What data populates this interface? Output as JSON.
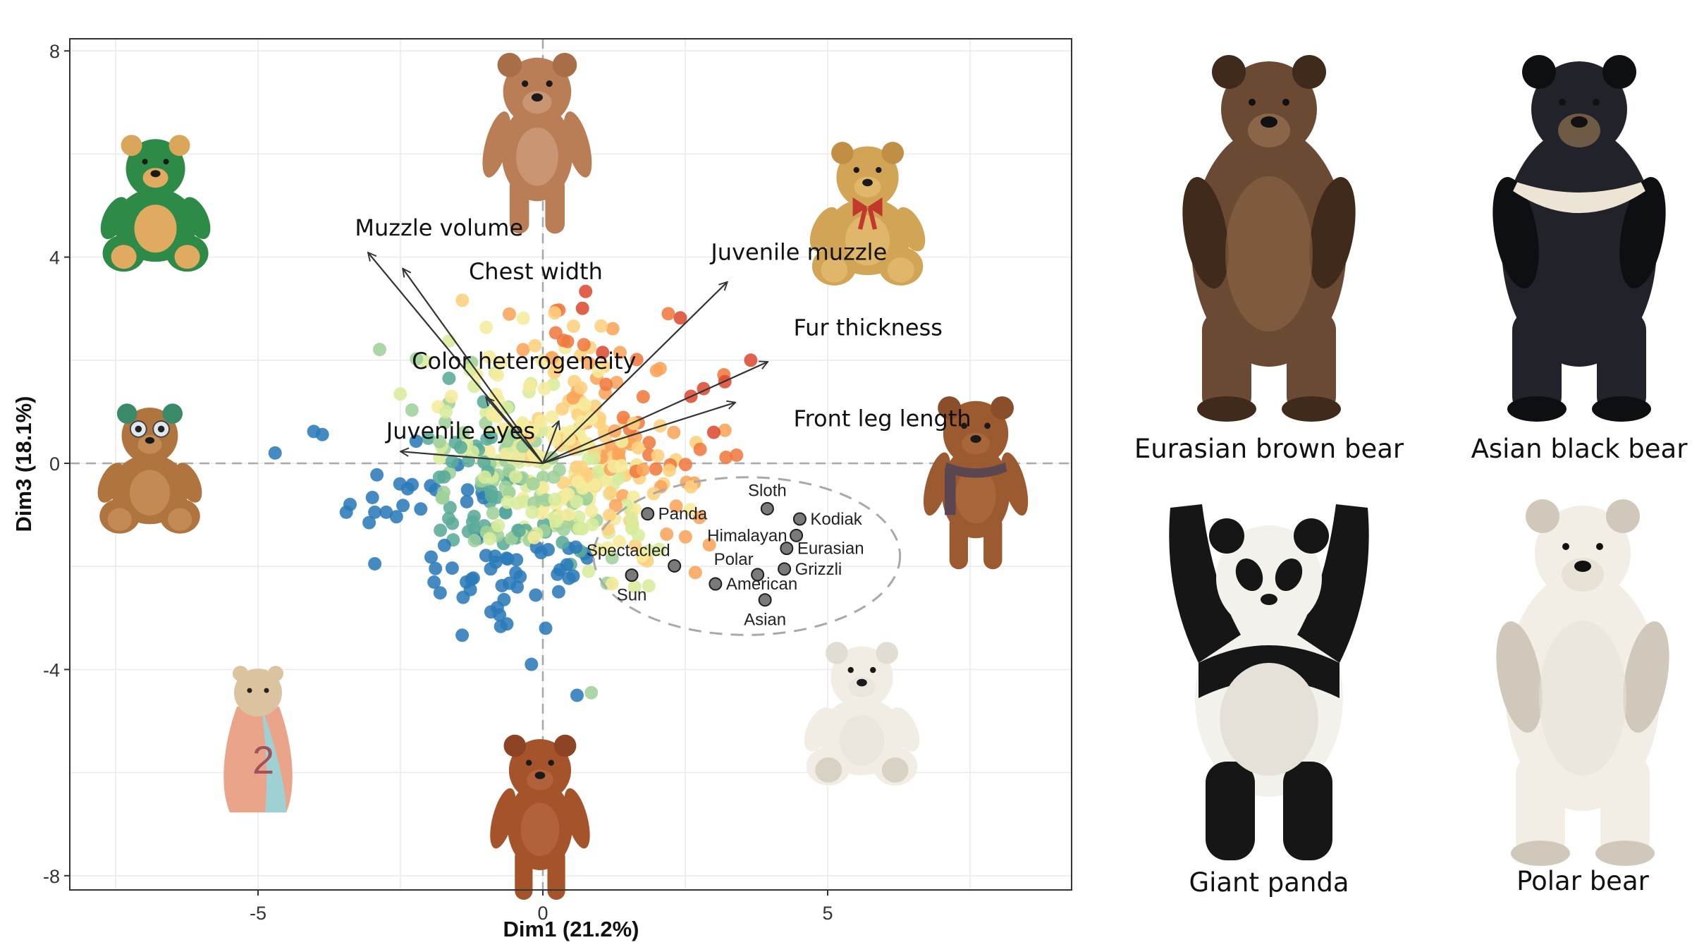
{
  "chart_data": {
    "type": "scatter",
    "subtype": "PCA biplot",
    "title": "",
    "xlabel": "Dim1 (21.2%)",
    "ylabel": "Dim3 (18.1%)",
    "xlim": [
      -8.3,
      9.3
    ],
    "ylim": [
      -8.3,
      8.25
    ],
    "xticks": [
      -5,
      0,
      5
    ],
    "yticks": [
      8,
      4,
      0,
      -4,
      -8
    ],
    "xtick_labels": [
      "-5",
      "0",
      "5"
    ],
    "ytick_labels": [
      "8",
      "4",
      "0",
      "-4",
      "-8"
    ],
    "grid": true,
    "reference_lines": {
      "x": 0,
      "y": 0,
      "style": "dashed",
      "color": "#a9a9a9"
    },
    "legend": null,
    "color_scale": [
      "#2b7bba",
      "#5aab9a",
      "#9fd09a",
      "#d8ec9c",
      "#f5ec9c",
      "#fdd07e",
      "#f9a45a",
      "#ef7a3f",
      "#dc4b33"
    ],
    "loadings": [
      {
        "label": "Muzzle volume",
        "x": -3.07,
        "y": 4.09,
        "label_x": -3.3,
        "label_y": 4.42
      },
      {
        "label": "Chest width",
        "x": -2.46,
        "y": 3.78,
        "label_x": -1.3,
        "label_y": 3.57
      },
      {
        "label": "Juvenile muzzle",
        "x": 3.24,
        "y": 3.52,
        "label_x": 2.95,
        "label_y": 3.95
      },
      {
        "label": "Fur thickness",
        "x": 3.95,
        "y": 1.97,
        "label_x": 4.4,
        "label_y": 2.48
      },
      {
        "label": "Front leg length",
        "x": 3.38,
        "y": 1.18,
        "label_x": 4.4,
        "label_y": 0.72
      },
      {
        "label": "Color heterogeneity",
        "x": -1.0,
        "y": 1.28,
        "label_x": -2.3,
        "label_y": 1.83
      },
      {
        "label": "Juvenile eyes",
        "x": -2.5,
        "y": 0.23,
        "label_x": -2.75,
        "label_y": 0.48
      },
      {
        "label": "",
        "x": 0.28,
        "y": 0.82,
        "label_x": 0,
        "label_y": 0
      }
    ],
    "species_points": [
      {
        "label": "Panda",
        "x": 1.84,
        "y": -0.98,
        "label_pos": "right"
      },
      {
        "label": "Sloth",
        "x": 3.94,
        "y": -0.88,
        "label_pos": "above"
      },
      {
        "label": "Kodiak",
        "x": 4.51,
        "y": -1.08,
        "label_pos": "right"
      },
      {
        "label": "Himalayan",
        "x": 4.45,
        "y": -1.4,
        "label_pos": "left"
      },
      {
        "label": "Eurasian",
        "x": 4.28,
        "y": -1.65,
        "label_pos": "right"
      },
      {
        "label": "Polar",
        "x": 3.77,
        "y": -2.16,
        "label_pos": "above-left"
      },
      {
        "label": "Grizzli",
        "x": 4.24,
        "y": -2.05,
        "label_pos": "right"
      },
      {
        "label": "Spectacled",
        "x": 2.31,
        "y": -1.99,
        "label_pos": "above-left"
      },
      {
        "label": "Sun",
        "x": 1.56,
        "y": -2.17,
        "label_pos": "below"
      },
      {
        "label": "American",
        "x": 3.03,
        "y": -2.34,
        "label_pos": "right"
      },
      {
        "label": "Asian",
        "x": 3.9,
        "y": -2.65,
        "label_pos": "below"
      }
    ],
    "species_ellipse": {
      "cx": 3.58,
      "cy": -1.8,
      "rx_units": 2.69,
      "ry_units": 1.53,
      "style": "dashed",
      "color": "#a9a9a9"
    },
    "teddy_images": [
      {
        "name": "green-teddy",
        "x": -6.8,
        "y": 5.1
      },
      {
        "name": "brown-plush-bear",
        "x": -0.1,
        "y": 6.5
      },
      {
        "name": "golden-teddy-red-bow",
        "x": 5.7,
        "y": 4.9
      },
      {
        "name": "big-eyed-teddy",
        "x": -6.9,
        "y": -0.05
      },
      {
        "name": "scarf-teddy",
        "x": 7.6,
        "y": -0.1
      },
      {
        "name": "bowling-pin-bear-2",
        "x": -5.0,
        "y": -5.2
      },
      {
        "name": "polar-plush",
        "x": 5.6,
        "y": -4.8
      },
      {
        "name": "vintage-jointed-teddy",
        "x": -0.05,
        "y": -6.6
      }
    ]
  },
  "axes": {
    "x_title": "Dim1 (21.2%)",
    "y_title": "Dim3 (18.1%)"
  },
  "reference_panel": {
    "bears": [
      {
        "caption": "Eurasian brown bear",
        "fur": "#6b4a33",
        "fur_dark": "#3f2a1c",
        "belly": "#8a6547"
      },
      {
        "caption": "Asian black bear",
        "fur": "#22232a",
        "fur_dark": "#0e0f13",
        "belly": "#ece5d6"
      },
      {
        "caption": "Giant panda",
        "fur": "#f3f1ec",
        "fur_dark": "#161616",
        "belly": "#e6e1d8"
      },
      {
        "caption": "Polar bear",
        "fur": "#f2eee6",
        "fur_dark": "#cfc8bb",
        "belly": "#e8e2d6"
      }
    ]
  }
}
